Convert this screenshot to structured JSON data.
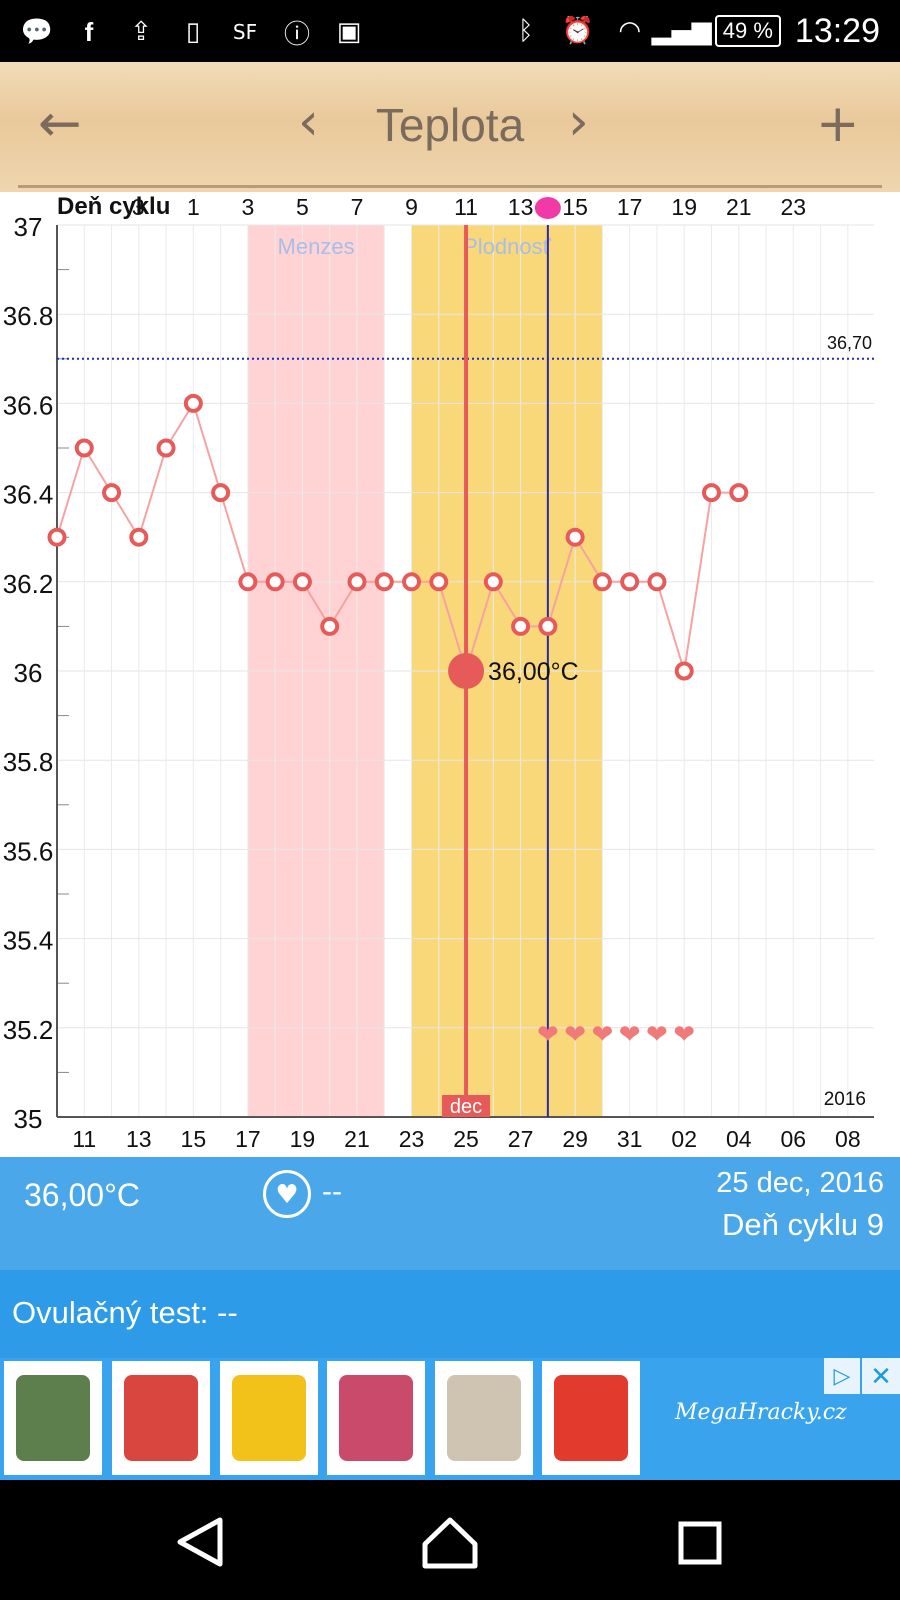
{
  "status_bar": {
    "icons": [
      "chat-bubble-icon",
      "facebook-icon",
      "upload-icon",
      "sim-icon",
      "sf-icon",
      "info-icon",
      "image-icon"
    ],
    "battery": "49 %",
    "time": "13:29"
  },
  "toolbar": {
    "title": "Teplota",
    "back_glyph": "←",
    "prev_glyph": "‹",
    "next_glyph": "›",
    "add_glyph": "+"
  },
  "chart_data": {
    "type": "line",
    "top_axis_label": "Deň cyklu",
    "x_dates": [
      "10",
      "11",
      "12",
      "13",
      "14",
      "15",
      "16",
      "17",
      "18",
      "19",
      "20",
      "21",
      "22",
      "23",
      "24",
      "25",
      "26",
      "27",
      "28",
      "29",
      "30",
      "31",
      "01",
      "02",
      "03",
      "04",
      "05",
      "06",
      "07",
      "08"
    ],
    "x_tick_labels": [
      "11",
      "13",
      "15",
      "17",
      "19",
      "21",
      "23",
      "25",
      "27",
      "29",
      "31",
      "02",
      "04",
      "06",
      "08"
    ],
    "cycle_tick_labels": [
      "23",
      "1",
      "3",
      "5",
      "7",
      "9",
      "11",
      "13",
      "15",
      "17",
      "19",
      "21",
      "23"
    ],
    "series": [
      {
        "values": [
          36.3,
          36.5,
          36.4,
          36.3,
          36.5,
          36.6,
          36.4,
          36.2,
          36.2,
          36.2,
          36.1,
          36.2,
          36.2,
          36.2,
          36.2,
          36.0,
          36.2,
          36.1,
          36.1,
          36.3,
          36.2,
          36.2,
          36.2,
          36.0,
          36.4,
          36.4
        ]
      }
    ],
    "ylim": [
      35,
      37
    ],
    "y_ticks": [
      "35",
      "35.2",
      "35.4",
      "35.6",
      "35.8",
      "36",
      "36.2",
      "36.4",
      "36.6",
      "36.8",
      "37"
    ],
    "coverline": {
      "value": 36.7,
      "label": "36,70"
    },
    "bands": [
      {
        "label": "Menzes",
        "from": "17",
        "to": "22",
        "color": "#ffd3d3"
      },
      {
        "label": "Plodnosť",
        "from": "23",
        "to": "30",
        "color": "#f9d87a"
      }
    ],
    "selected": {
      "date": "25",
      "month_label": "dec",
      "value_label": "36,00°C"
    },
    "ovulation_line_date": "28",
    "hearts": [
      "28",
      "29",
      "30",
      "31",
      "01",
      "02"
    ],
    "year_label": "2016",
    "grid": true
  },
  "summary": {
    "temperature": "36,00°C",
    "intercourse": "--",
    "date": "25 dec, 2016",
    "cycle_day": "Deň cyklu 9"
  },
  "ovulation": {
    "label": "Ovulačný test:",
    "value": "--"
  },
  "ad": {
    "brand": "MegaHracky.cz",
    "thumb_colors": [
      "#5d7f4e",
      "#d9453f",
      "#f2c21b",
      "#c94a6a",
      "#cfc4b2",
      "#e23b2e"
    ]
  },
  "colors": {
    "accent": "#e75a5a",
    "line": "#f7a2a2",
    "info_bar": "#4aa7ea",
    "ovulation_bar": "#2e9be8",
    "coverline": "#1a2bbf",
    "ovulation_line": "#2a2aa0"
  }
}
